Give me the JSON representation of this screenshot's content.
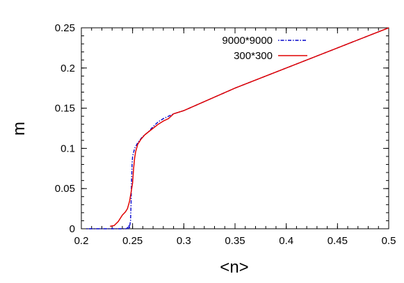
{
  "chart_data": {
    "type": "line",
    "title": "",
    "xlabel": "<n>",
    "ylabel": "m",
    "xlim": [
      0.2,
      0.5
    ],
    "ylim": [
      0,
      0.25
    ],
    "xticks": [
      0.2,
      0.25,
      0.3,
      0.35,
      0.4,
      0.45,
      0.5
    ],
    "yticks": [
      0,
      0.05,
      0.1,
      0.15,
      0.2,
      0.25
    ],
    "xtick_labels": [
      "0.2",
      "0.25",
      "0.3",
      "0.35",
      "0.4",
      "0.45",
      "0.5"
    ],
    "ytick_labels": [
      "0",
      "0.05",
      "0.1",
      "0.15",
      "0.2",
      "0.25"
    ],
    "grid": false,
    "legend_position": "top-center",
    "series": [
      {
        "name": "9000*9000",
        "color": "#0000cc",
        "dash": "dot-dash",
        "x": [
          0.205,
          0.22,
          0.235,
          0.244,
          0.2455,
          0.246,
          0.2465,
          0.247,
          0.2475,
          0.248,
          0.2485,
          0.249,
          0.2495,
          0.25,
          0.252,
          0.255,
          0.26,
          0.265,
          0.27,
          0.275,
          0.28,
          0.29,
          0.3,
          0.35,
          0.4,
          0.45,
          0.5
        ],
        "y": [
          0.0,
          0.0,
          0.0,
          0.0,
          0.002,
          0.0,
          0.004,
          0.0,
          0.006,
          0.01,
          0.03,
          0.06,
          0.08,
          0.09,
          0.1,
          0.107,
          0.115,
          0.12,
          0.127,
          0.133,
          0.137,
          0.143,
          0.147,
          0.175,
          0.2,
          0.225,
          0.25
        ]
      },
      {
        "name": "300*300",
        "color": "#e00000",
        "dash": "solid",
        "x": [
          0.228,
          0.232,
          0.236,
          0.24,
          0.243,
          0.245,
          0.247,
          0.2485,
          0.25,
          0.251,
          0.252,
          0.253,
          0.255,
          0.258,
          0.262,
          0.266,
          0.27,
          0.275,
          0.28,
          0.285,
          0.29,
          0.3,
          0.35,
          0.4,
          0.45,
          0.5
        ],
        "y": [
          0.003,
          0.004,
          0.009,
          0.017,
          0.021,
          0.025,
          0.034,
          0.045,
          0.057,
          0.075,
          0.088,
          0.096,
          0.105,
          0.111,
          0.117,
          0.121,
          0.125,
          0.13,
          0.134,
          0.137,
          0.143,
          0.147,
          0.175,
          0.2,
          0.225,
          0.25
        ]
      }
    ]
  }
}
